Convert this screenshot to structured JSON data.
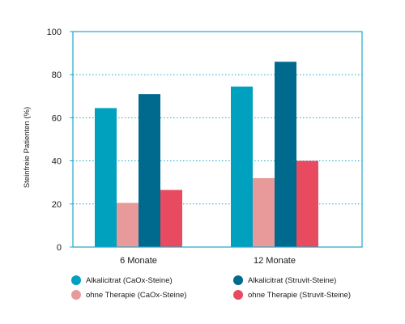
{
  "chart_data": {
    "type": "bar",
    "ylabel": "Steinfreie Patienten (%)",
    "ylim": [
      0,
      100
    ],
    "yticks": [
      0,
      20,
      40,
      60,
      80,
      100
    ],
    "categories": [
      "6 Monate",
      "12 Monate"
    ],
    "series": [
      {
        "name": "Alkalicitrat (CaOx-Steine)",
        "color": "#00a0bf",
        "values": [
          64.5,
          74.5
        ]
      },
      {
        "name": "ohne Therapie (CaOx-Steine)",
        "color": "#e89a9a",
        "values": [
          20.5,
          32
        ]
      },
      {
        "name": "Alkalicitrat (Struvit-Steine)",
        "color": "#006a8e",
        "values": [
          71,
          86
        ]
      },
      {
        "name": "ohne Therapie (Struvit-Steine)",
        "color": "#e84a5f",
        "values": [
          26.5,
          40
        ]
      }
    ],
    "grid": "dotted horizontal",
    "axis_color": "#1fa8c8",
    "legend_position": "bottom"
  }
}
